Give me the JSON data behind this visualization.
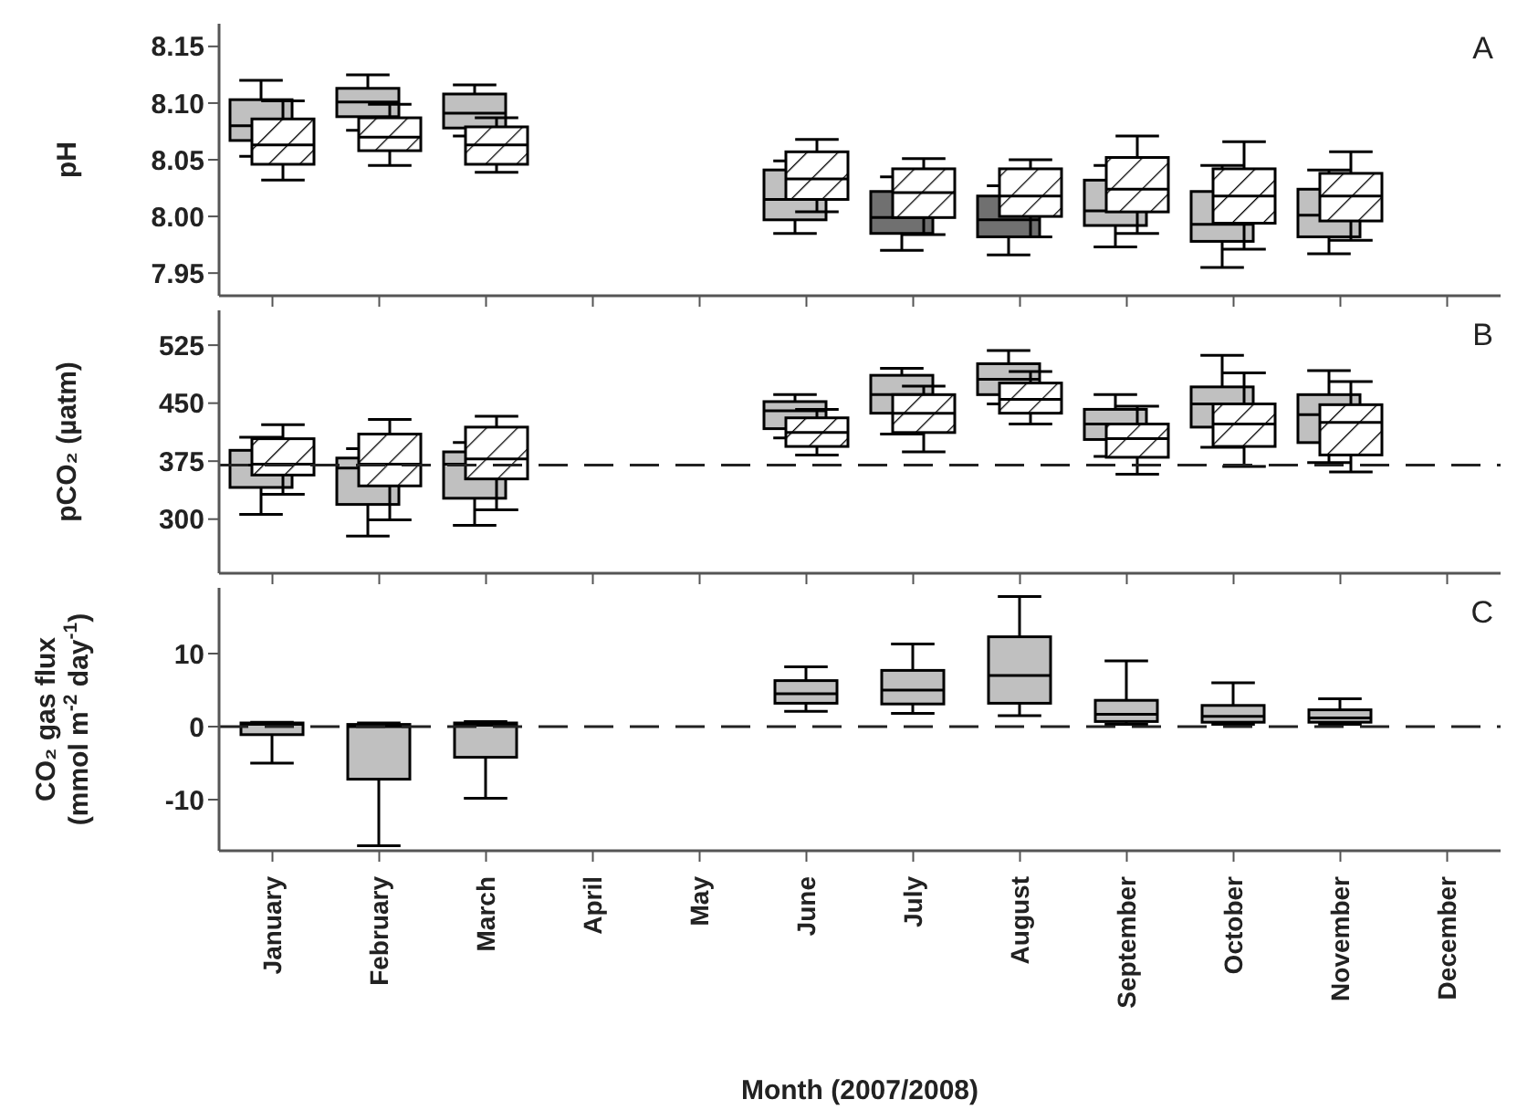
{
  "chart_data": [
    {
      "type": "box",
      "categories": [
        null,
        null,
        null,
        null,
        null,
        null,
        null,
        null,
        null,
        null,
        null,
        null
      ],
      "ylabel": "pH",
      "ylim": [
        7.93,
        8.17
      ],
      "yticks": [
        7.95,
        {
          "value": 8,
          "label": "8.00"
        },
        8.05,
        {
          "value": 8.1,
          "label": "8.10"
        },
        8.15
      ],
      "tick_labels": "y",
      "annotations": [
        "A"
      ],
      "series": [
        {
          "color": "#c0c0c0",
          "colors": [
            "#c0c0c0",
            "#c0c0c0",
            "#c0c0c0",
            null,
            null,
            "#c0c0c0",
            "#707070",
            "#707070",
            "#c0c0c0",
            "#c0c0c0",
            "#c0c0c0",
            null
          ],
          "boxes": [
            {
              "low": 8.053,
              "q1": 8.067,
              "median": 8.08,
              "q3": 8.103,
              "high": 8.12
            },
            {
              "low": 8.076,
              "q1": 8.088,
              "median": 8.101,
              "q3": 8.113,
              "high": 8.125
            },
            {
              "low": 8.071,
              "q1": 8.078,
              "median": 8.091,
              "q3": 8.108,
              "high": 8.116
            },
            null,
            null,
            {
              "low": 7.985,
              "q1": 7.997,
              "median": 8.015,
              "q3": 8.041,
              "high": 8.049
            },
            {
              "low": 7.97,
              "q1": 7.985,
              "median": 7.999,
              "q3": 8.022,
              "high": 8.035
            },
            {
              "low": 7.966,
              "q1": 7.982,
              "median": 7.997,
              "q3": 8.018,
              "high": 8.027
            },
            {
              "low": 7.973,
              "q1": 7.992,
              "median": 8.005,
              "q3": 8.032,
              "high": 8.045
            },
            {
              "low": 7.955,
              "q1": 7.978,
              "median": 7.993,
              "q3": 8.022,
              "high": 8.045
            },
            {
              "low": 7.967,
              "q1": 7.982,
              "median": 8.001,
              "q3": 8.024,
              "high": 8.041
            },
            null
          ]
        },
        {
          "color": "#ffffff",
          "boxes": [
            {
              "low": 8.032,
              "q1": 8.046,
              "median": 8.063,
              "q3": 8.086,
              "high": 8.102
            },
            {
              "low": 8.045,
              "q1": 8.058,
              "median": 8.07,
              "q3": 8.087,
              "high": 8.099
            },
            {
              "low": 8.039,
              "q1": 8.046,
              "median": 8.063,
              "q3": 8.079,
              "high": 8.087
            },
            null,
            null,
            {
              "low": 8.004,
              "q1": 8.015,
              "median": 8.033,
              "q3": 8.057,
              "high": 8.068
            },
            {
              "low": 7.984,
              "q1": 7.999,
              "median": 8.021,
              "q3": 8.042,
              "high": 8.051
            },
            {
              "low": 7.982,
              "q1": 8.0,
              "median": 8.018,
              "q3": 8.042,
              "high": 8.05
            },
            {
              "low": 7.985,
              "q1": 8.004,
              "median": 8.024,
              "q3": 8.052,
              "high": 8.071
            },
            {
              "low": 7.971,
              "q1": 7.994,
              "median": 8.018,
              "q3": 8.042,
              "high": 8.066
            },
            {
              "low": 7.979,
              "q1": 7.996,
              "median": 8.018,
              "q3": 8.038,
              "high": 8.057
            },
            null
          ]
        }
      ]
    },
    {
      "type": "box",
      "categories": [
        null,
        null,
        null,
        null,
        null,
        null,
        null,
        null,
        null,
        null,
        null,
        null
      ],
      "ylabel": "pCO₂ (µatm)",
      "ylim": [
        230,
        570
      ],
      "yticks": [
        300,
        375,
        450,
        525
      ],
      "tick_labels": "y",
      "annotations": [
        "B"
      ],
      "ref_lines": [
        {
          "axis": "y",
          "value": 370,
          "line_style": "dashed"
        }
      ],
      "series": [
        {
          "color": "#c0c0c0",
          "boxes": [
            {
              "low": 306,
              "q1": 341,
              "median": 370,
              "q3": 389,
              "high": 406
            },
            {
              "low": 278,
              "q1": 319,
              "median": 366,
              "q3": 379,
              "high": 391
            },
            {
              "low": 292,
              "q1": 327,
              "median": 371,
              "q3": 387,
              "high": 399
            },
            null,
            null,
            {
              "low": 405,
              "q1": 417,
              "median": 440,
              "q3": 452,
              "high": 461
            },
            {
              "low": 410,
              "q1": 437,
              "median": 461,
              "q3": 486,
              "high": 495
            },
            {
              "low": 449,
              "q1": 461,
              "median": 481,
              "q3": 501,
              "high": 518
            },
            {
              "low": 381,
              "q1": 403,
              "median": 423,
              "q3": 442,
              "high": 461
            },
            {
              "low": 393,
              "q1": 419,
              "median": 449,
              "q3": 471,
              "high": 512
            },
            {
              "low": 373,
              "q1": 399,
              "median": 435,
              "q3": 461,
              "high": 492
            },
            null
          ]
        },
        {
          "color": "#ffffff",
          "boxes": [
            {
              "low": 332,
              "q1": 357,
              "median": 371,
              "q3": 404,
              "high": 422
            },
            {
              "low": 299,
              "q1": 343,
              "median": 371,
              "q3": 410,
              "high": 429
            },
            {
              "low": 312,
              "q1": 352,
              "median": 378,
              "q3": 419,
              "high": 433
            },
            null,
            null,
            {
              "low": 383,
              "q1": 394,
              "median": 412,
              "q3": 431,
              "high": 442
            },
            {
              "low": 387,
              "q1": 412,
              "median": 437,
              "q3": 461,
              "high": 472
            },
            {
              "low": 423,
              "q1": 437,
              "median": 455,
              "q3": 476,
              "high": 491
            },
            {
              "low": 358,
              "q1": 380,
              "median": 404,
              "q3": 423,
              "high": 446
            },
            {
              "low": 368,
              "q1": 394,
              "median": 423,
              "q3": 449,
              "high": 489
            },
            {
              "low": 361,
              "q1": 383,
              "median": 425,
              "q3": 448,
              "high": 478
            },
            null
          ]
        }
      ]
    },
    {
      "type": "box",
      "categories": [
        "January",
        "February",
        "March",
        "April",
        "May",
        "June",
        "July",
        "August",
        "September",
        "October",
        "November",
        "December"
      ],
      "xlabel": "Month (2007/2008)",
      "ylabel": "CO₂ gas flux (mmol m$^{-2}$ day$^{-1}$)",
      "ylim": [
        -17,
        19
      ],
      "yticks": [
        -10,
        0,
        10
      ],
      "annotations": [
        "C"
      ],
      "ref_lines": [
        {
          "axis": "y",
          "value": 0,
          "line_style": "dashed"
        }
      ],
      "series": [
        {
          "color": "#c0c0c0",
          "boxes": [
            {
              "low": -5,
              "q1": -1.1,
              "median": 0.3,
              "q3": 0.5,
              "high": 0.6
            },
            {
              "low": -16.3,
              "q1": -7.2,
              "median": 0,
              "q3": 0.3,
              "high": 0.5
            },
            {
              "low": -9.8,
              "q1": -4.2,
              "median": 0.2,
              "q3": 0.5,
              "high": 0.7
            },
            null,
            null,
            {
              "low": 2.1,
              "q1": 3.2,
              "median": 4.5,
              "q3": 6.3,
              "high": 8.2
            },
            {
              "low": 1.8,
              "q1": 3.1,
              "median": 5,
              "q3": 7.7,
              "high": 11.3
            },
            {
              "low": 1.5,
              "q1": 3.2,
              "median": 7,
              "q3": 12.3,
              "high": 17.8
            },
            {
              "low": 0.3,
              "q1": 0.7,
              "median": 1.7,
              "q3": 3.6,
              "high": 9
            },
            {
              "low": 0.3,
              "q1": 0.6,
              "median": 1.4,
              "q3": 2.9,
              "high": 6
            },
            {
              "low": 0.3,
              "q1": 0.6,
              "median": 1.2,
              "q3": 2.3,
              "high": 3.8
            },
            null
          ]
        }
      ]
    }
  ]
}
